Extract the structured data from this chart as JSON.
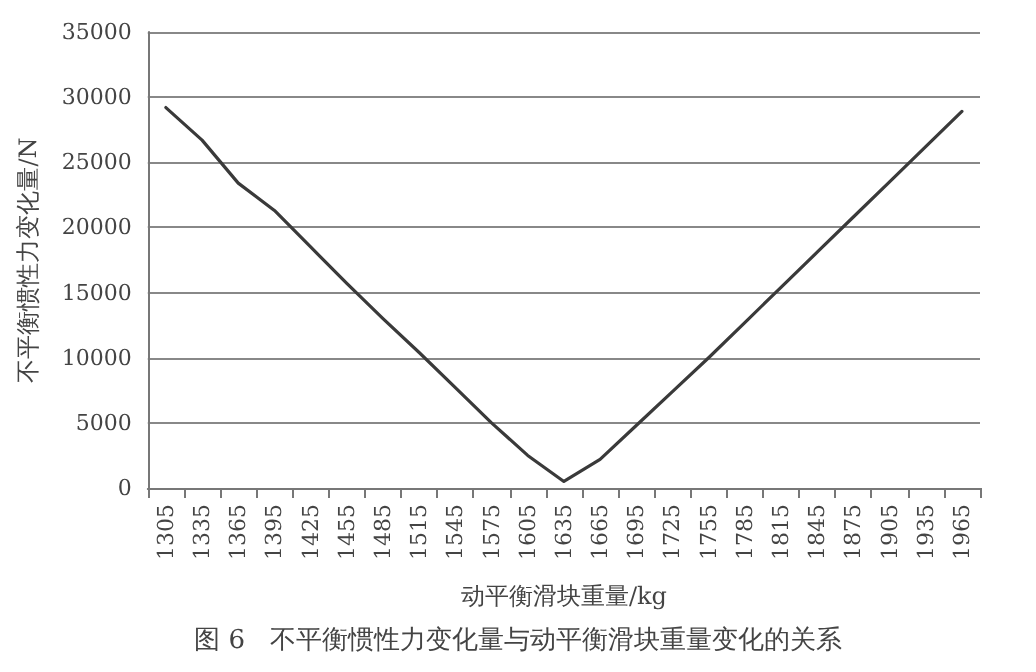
{
  "chart_data": {
    "type": "line",
    "title": "图 6   不平衡惯性力变化量与动平衡滑块重量变化的关系",
    "xlabel": "动平衡滑块重量/kg",
    "ylabel": "不平衡惯性力变化量/N",
    "categories": [
      "1305",
      "1335",
      "1365",
      "1395",
      "1425",
      "1455",
      "1485",
      "1515",
      "1545",
      "1575",
      "1605",
      "1635",
      "1665",
      "1695",
      "1725",
      "1755",
      "1785",
      "1815",
      "1845",
      "1875",
      "1905",
      "1935",
      "1965"
    ],
    "series": [
      {
        "color": "#3a3a3a",
        "values": [
          29200,
          26700,
          23400,
          21300,
          18500,
          15700,
          13000,
          10400,
          7700,
          5000,
          2500,
          500,
          2200,
          4800,
          7400,
          10000,
          12700,
          15400,
          18100,
          20800,
          23500,
          26200,
          28900
        ]
      }
    ],
    "ylim": [
      0,
      35000
    ],
    "yticks": [
      0,
      5000,
      10000,
      15000,
      20000,
      25000,
      30000,
      35000
    ],
    "grid": "y",
    "marker": "none",
    "line_style": "solid"
  }
}
